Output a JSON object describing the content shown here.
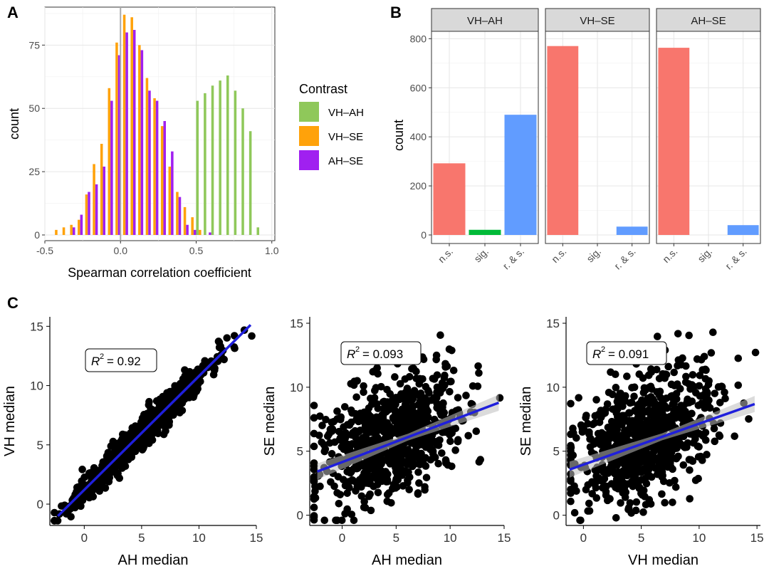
{
  "figure_labels": {
    "a": "A",
    "b": "B",
    "c": "C"
  },
  "colors": {
    "vh_ah": "#8fc85a",
    "vh_se": "#ffa20a",
    "ah_se": "#a020f0",
    "ns": "#f8766d",
    "sig": "#00ba38",
    "rs": "#619cff",
    "regression": "#1f1fdc",
    "points": "#000000"
  },
  "chart_data": [
    {
      "id": "A",
      "type": "bar",
      "subtype": "histogram",
      "xlabel": "Spearman correlation coefficient",
      "ylabel": "count",
      "xlim": [
        -0.5,
        1.02
      ],
      "ylim": [
        0,
        90
      ],
      "xticks": [
        -0.5,
        0.0,
        0.5,
        1.0
      ],
      "xtick_labels": [
        "-0.5",
        "0.0",
        "0.5",
        "1.0"
      ],
      "yticks": [
        0,
        25,
        50,
        75
      ],
      "vline": 0,
      "grid": true,
      "legend": {
        "title": "Contrast",
        "position": "right",
        "entries": [
          "VH–AH",
          "VH–SE",
          "AH–SE"
        ]
      },
      "bins": [
        -0.425,
        -0.375,
        -0.325,
        -0.275,
        -0.225,
        -0.175,
        -0.125,
        -0.075,
        -0.025,
        0.025,
        0.075,
        0.125,
        0.175,
        0.225,
        0.275,
        0.325,
        0.375,
        0.425,
        0.475,
        0.525,
        0.575,
        0.625,
        0.675,
        0.725,
        0.775,
        0.825,
        0.875,
        0.925
      ],
      "series": [
        {
          "name": "VH–AH",
          "values": [
            0,
            0,
            0,
            0,
            0,
            0,
            0,
            0,
            0,
            0,
            0,
            0,
            0,
            0,
            0,
            0,
            0,
            0,
            0,
            53,
            56,
            59,
            61,
            63,
            57,
            50,
            41,
            3
          ]
        },
        {
          "name": "VH–SE",
          "values": [
            2,
            3,
            4,
            6,
            16,
            28,
            36,
            58,
            76,
            87,
            86,
            75,
            62,
            54,
            43,
            27,
            17,
            11,
            7,
            2,
            0,
            0,
            0,
            0,
            0,
            0,
            0,
            0
          ]
        },
        {
          "name": "AH–SE",
          "values": [
            0,
            0,
            3,
            8,
            17,
            20,
            27,
            53,
            71,
            80,
            81,
            73,
            57,
            53,
            45,
            33,
            15,
            4,
            2,
            0,
            1,
            0,
            0,
            0,
            0,
            0,
            0,
            0
          ]
        }
      ]
    },
    {
      "id": "B",
      "type": "bar",
      "ylabel": "count",
      "ylim": [
        0,
        830
      ],
      "yticks": [
        0,
        200,
        400,
        600,
        800
      ],
      "categories": [
        "n.s.",
        "sig.",
        "r. & s."
      ],
      "facets": [
        {
          "title": "VH–AH",
          "values": [
            292,
            21,
            490
          ]
        },
        {
          "title": "VH–SE",
          "values": [
            770,
            0,
            34
          ]
        },
        {
          "title": "AH–SE",
          "values": [
            763,
            0,
            40
          ]
        }
      ]
    },
    {
      "id": "C",
      "type": "scatter",
      "panels": [
        {
          "xlabel": "AH median",
          "ylabel": "VH median",
          "annotation": "= 0.92",
          "r2_symbol": "R",
          "r2_exponent": "2",
          "xlim": [
            -3,
            15
          ],
          "ylim": [
            -1.8,
            15.8
          ],
          "xticks": [
            0,
            5,
            10,
            15
          ],
          "yticks": [
            0,
            5,
            10,
            15
          ],
          "fit": {
            "slope": 0.96,
            "intercept": 1.2,
            "x_range": [
              -2.3,
              14.5
            ]
          },
          "n": 800,
          "noise": 0.65,
          "seed": 11,
          "x_mean": 5.0,
          "x_sd": 2.9
        },
        {
          "xlabel": "AH median",
          "ylabel": "SE median",
          "annotation": "= 0.093",
          "r2_symbol": "R",
          "r2_exponent": "2",
          "xlim": [
            -3,
            15
          ],
          "ylim": [
            -0.8,
            15.5
          ],
          "xticks": [
            0,
            5,
            10,
            15
          ],
          "yticks": [
            0,
            5,
            10,
            15
          ],
          "fit": {
            "slope": 0.32,
            "intercept": 4.15,
            "x_range": [
              -2.3,
              14.5
            ]
          },
          "n": 800,
          "noise": 2.8,
          "seed": 23,
          "x_mean": 4.5,
          "x_sd": 3.2
        },
        {
          "xlabel": "VH median",
          "ylabel": "SE median",
          "annotation": "= 0.091",
          "r2_symbol": "R",
          "r2_exponent": "2",
          "xlim": [
            -1.5,
            15.3
          ],
          "ylim": [
            -0.8,
            15.5
          ],
          "xticks": [
            0,
            5,
            10,
            15
          ],
          "yticks": [
            0,
            5,
            10,
            15
          ],
          "fit": {
            "slope": 0.32,
            "intercept": 3.95,
            "x_range": [
              -1.2,
              14.8
            ]
          },
          "n": 800,
          "noise": 2.8,
          "seed": 37,
          "x_mean": 5.5,
          "x_sd": 3.1
        }
      ]
    }
  ]
}
